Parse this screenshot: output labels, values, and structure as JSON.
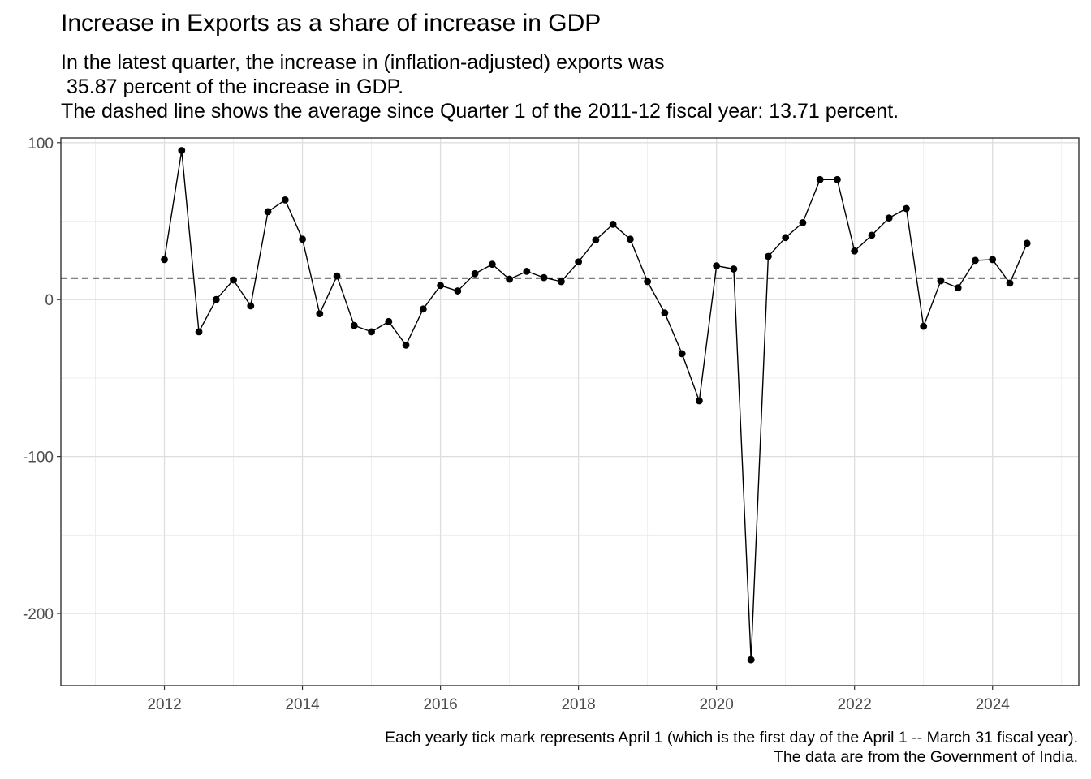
{
  "chart_data": {
    "type": "line",
    "title": "Increase in Exports as a share of increase in GDP",
    "subtitle_lines": [
      "In the latest quarter, the increase in (inflation-adjusted) exports was",
      " 35.87 percent of the increase in GDP.",
      "The dashed line shows the average since Quarter 1 of the 2011-12 fiscal year: 13.71 percent."
    ],
    "caption_lines": [
      "Each yearly tick mark represents April 1 (which is the first day of the April 1 -- March 31 fiscal year).",
      "The data are from the Government of India."
    ],
    "xlabel": "",
    "ylabel": "",
    "xlim": [
      2010.5,
      2025.25
    ],
    "ylim": [
      -246,
      103
    ],
    "x_ticks": [
      2012,
      2014,
      2016,
      2018,
      2020,
      2022,
      2024
    ],
    "y_ticks": [
      100,
      0,
      -100,
      -200
    ],
    "x_tick_labels": [
      "2012",
      "2014",
      "2016",
      "2018",
      "2020",
      "2022",
      "2024"
    ],
    "y_tick_labels": [
      "100",
      "0",
      "-100",
      "-200"
    ],
    "grid": true,
    "reference_line": {
      "value": 13.71,
      "style": "dashed"
    },
    "series": [
      {
        "x": [
          2012.0,
          2012.25,
          2012.5,
          2012.75,
          2013.0,
          2013.25,
          2013.5,
          2013.75,
          2014.0,
          2014.25,
          2014.5,
          2014.75,
          2015.0,
          2015.25,
          2015.5,
          2015.75,
          2016.0,
          2016.25,
          2016.5,
          2016.75,
          2017.0,
          2017.25,
          2017.5,
          2017.75,
          2018.0,
          2018.25,
          2018.5,
          2018.75,
          2019.0,
          2019.25,
          2019.5,
          2019.75,
          2020.0,
          2020.25,
          2020.5,
          2020.75,
          2021.0,
          2021.25,
          2021.5,
          2021.75,
          2022.0,
          2022.25,
          2022.5,
          2022.75,
          2023.0,
          2023.25,
          2023.5,
          2023.75,
          2024.0,
          2024.25,
          2024.5
        ],
        "values": [
          25.5,
          95,
          -20.5,
          0,
          12.5,
          -4,
          56,
          63.5,
          38.5,
          -9,
          15,
          -16.5,
          -20.5,
          -14,
          -29,
          -6,
          9,
          5.5,
          16.5,
          22.5,
          13,
          18,
          14,
          11.5,
          24,
          38,
          48,
          38.5,
          11.5,
          -8.5,
          -34.5,
          -64.5,
          21.5,
          19.5,
          -229.5,
          27.5,
          39.5,
          49,
          76.5,
          76.5,
          31,
          41,
          52,
          58,
          -17,
          12,
          7.5,
          25,
          25.5,
          10.5,
          35.87
        ]
      }
    ]
  }
}
